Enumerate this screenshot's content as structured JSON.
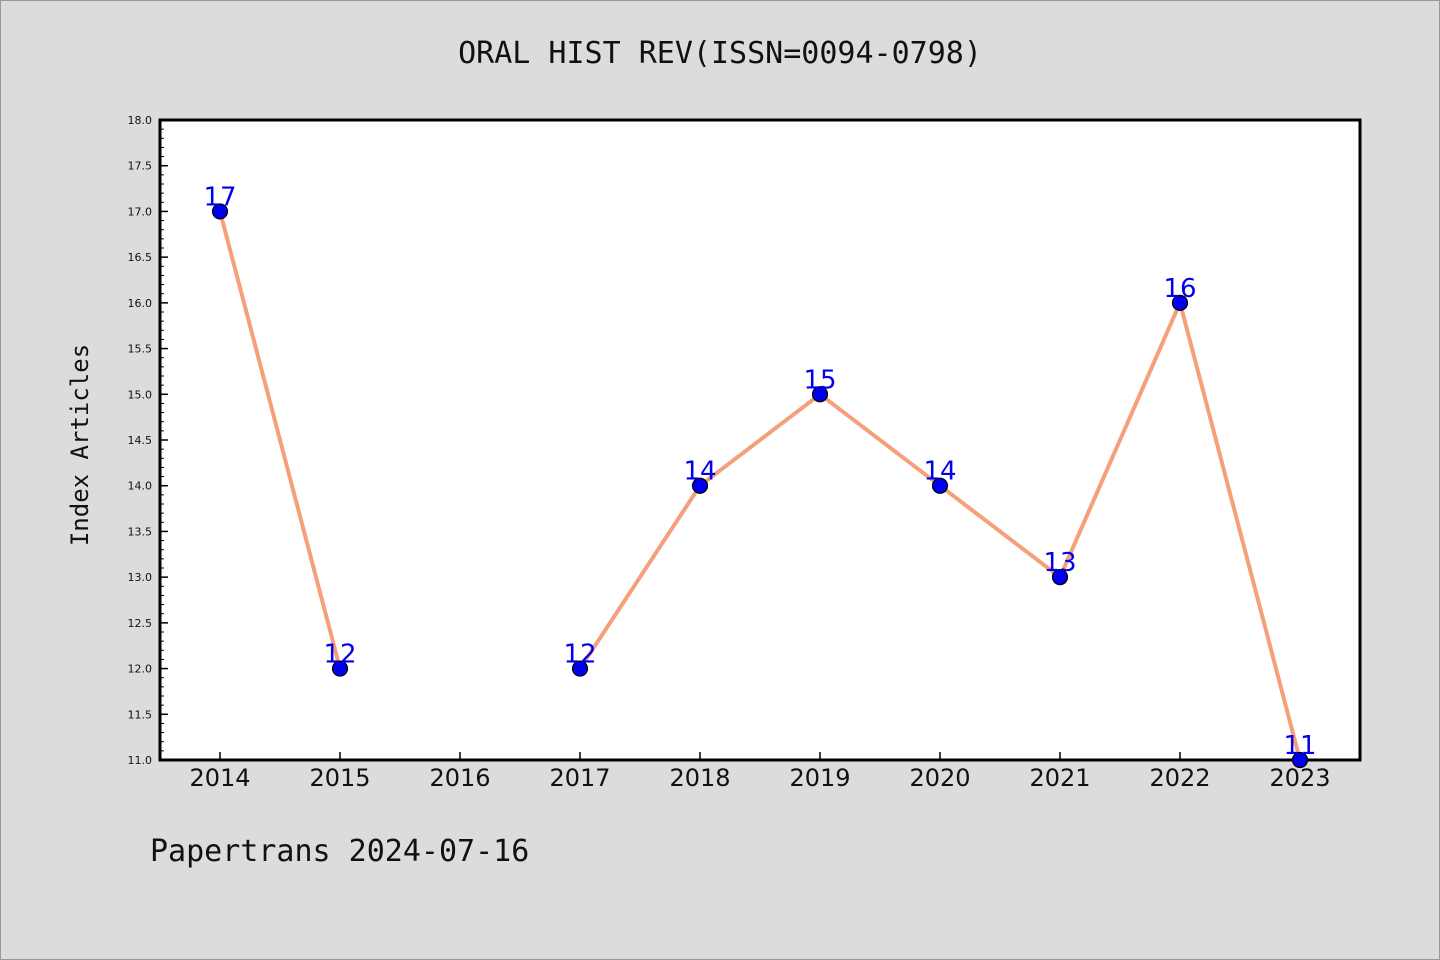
{
  "chart_data": {
    "type": "line",
    "title": "ORAL HIST REV(ISSN=0094-0798)",
    "xlabel": "",
    "ylabel": "Index Articles",
    "categories": [
      "2014",
      "2015",
      "2016",
      "2017",
      "2018",
      "2019",
      "2020",
      "2021",
      "2022",
      "2023"
    ],
    "segments": [
      {
        "x": [
          "2014",
          "2015"
        ],
        "values": [
          17,
          12
        ]
      },
      {
        "x": [
          "2017",
          "2018",
          "2019",
          "2020",
          "2021",
          "2022",
          "2023"
        ],
        "values": [
          12,
          14,
          15,
          14,
          13,
          16,
          11
        ]
      }
    ],
    "ylim": [
      11.0,
      18.0
    ],
    "yticks": [
      "11.0",
      "11.5",
      "12.0",
      "12.5",
      "13.0",
      "13.5",
      "14.0",
      "14.5",
      "15.0",
      "15.5",
      "16.0",
      "16.5",
      "17.0",
      "17.5",
      "18.0"
    ],
    "grid": false,
    "legend": "none",
    "line_color": "#f5a07a",
    "marker_color": "#0000ee",
    "label_color": "#0000ee"
  },
  "footer": {
    "note": "Papertrans 2024-07-16"
  }
}
